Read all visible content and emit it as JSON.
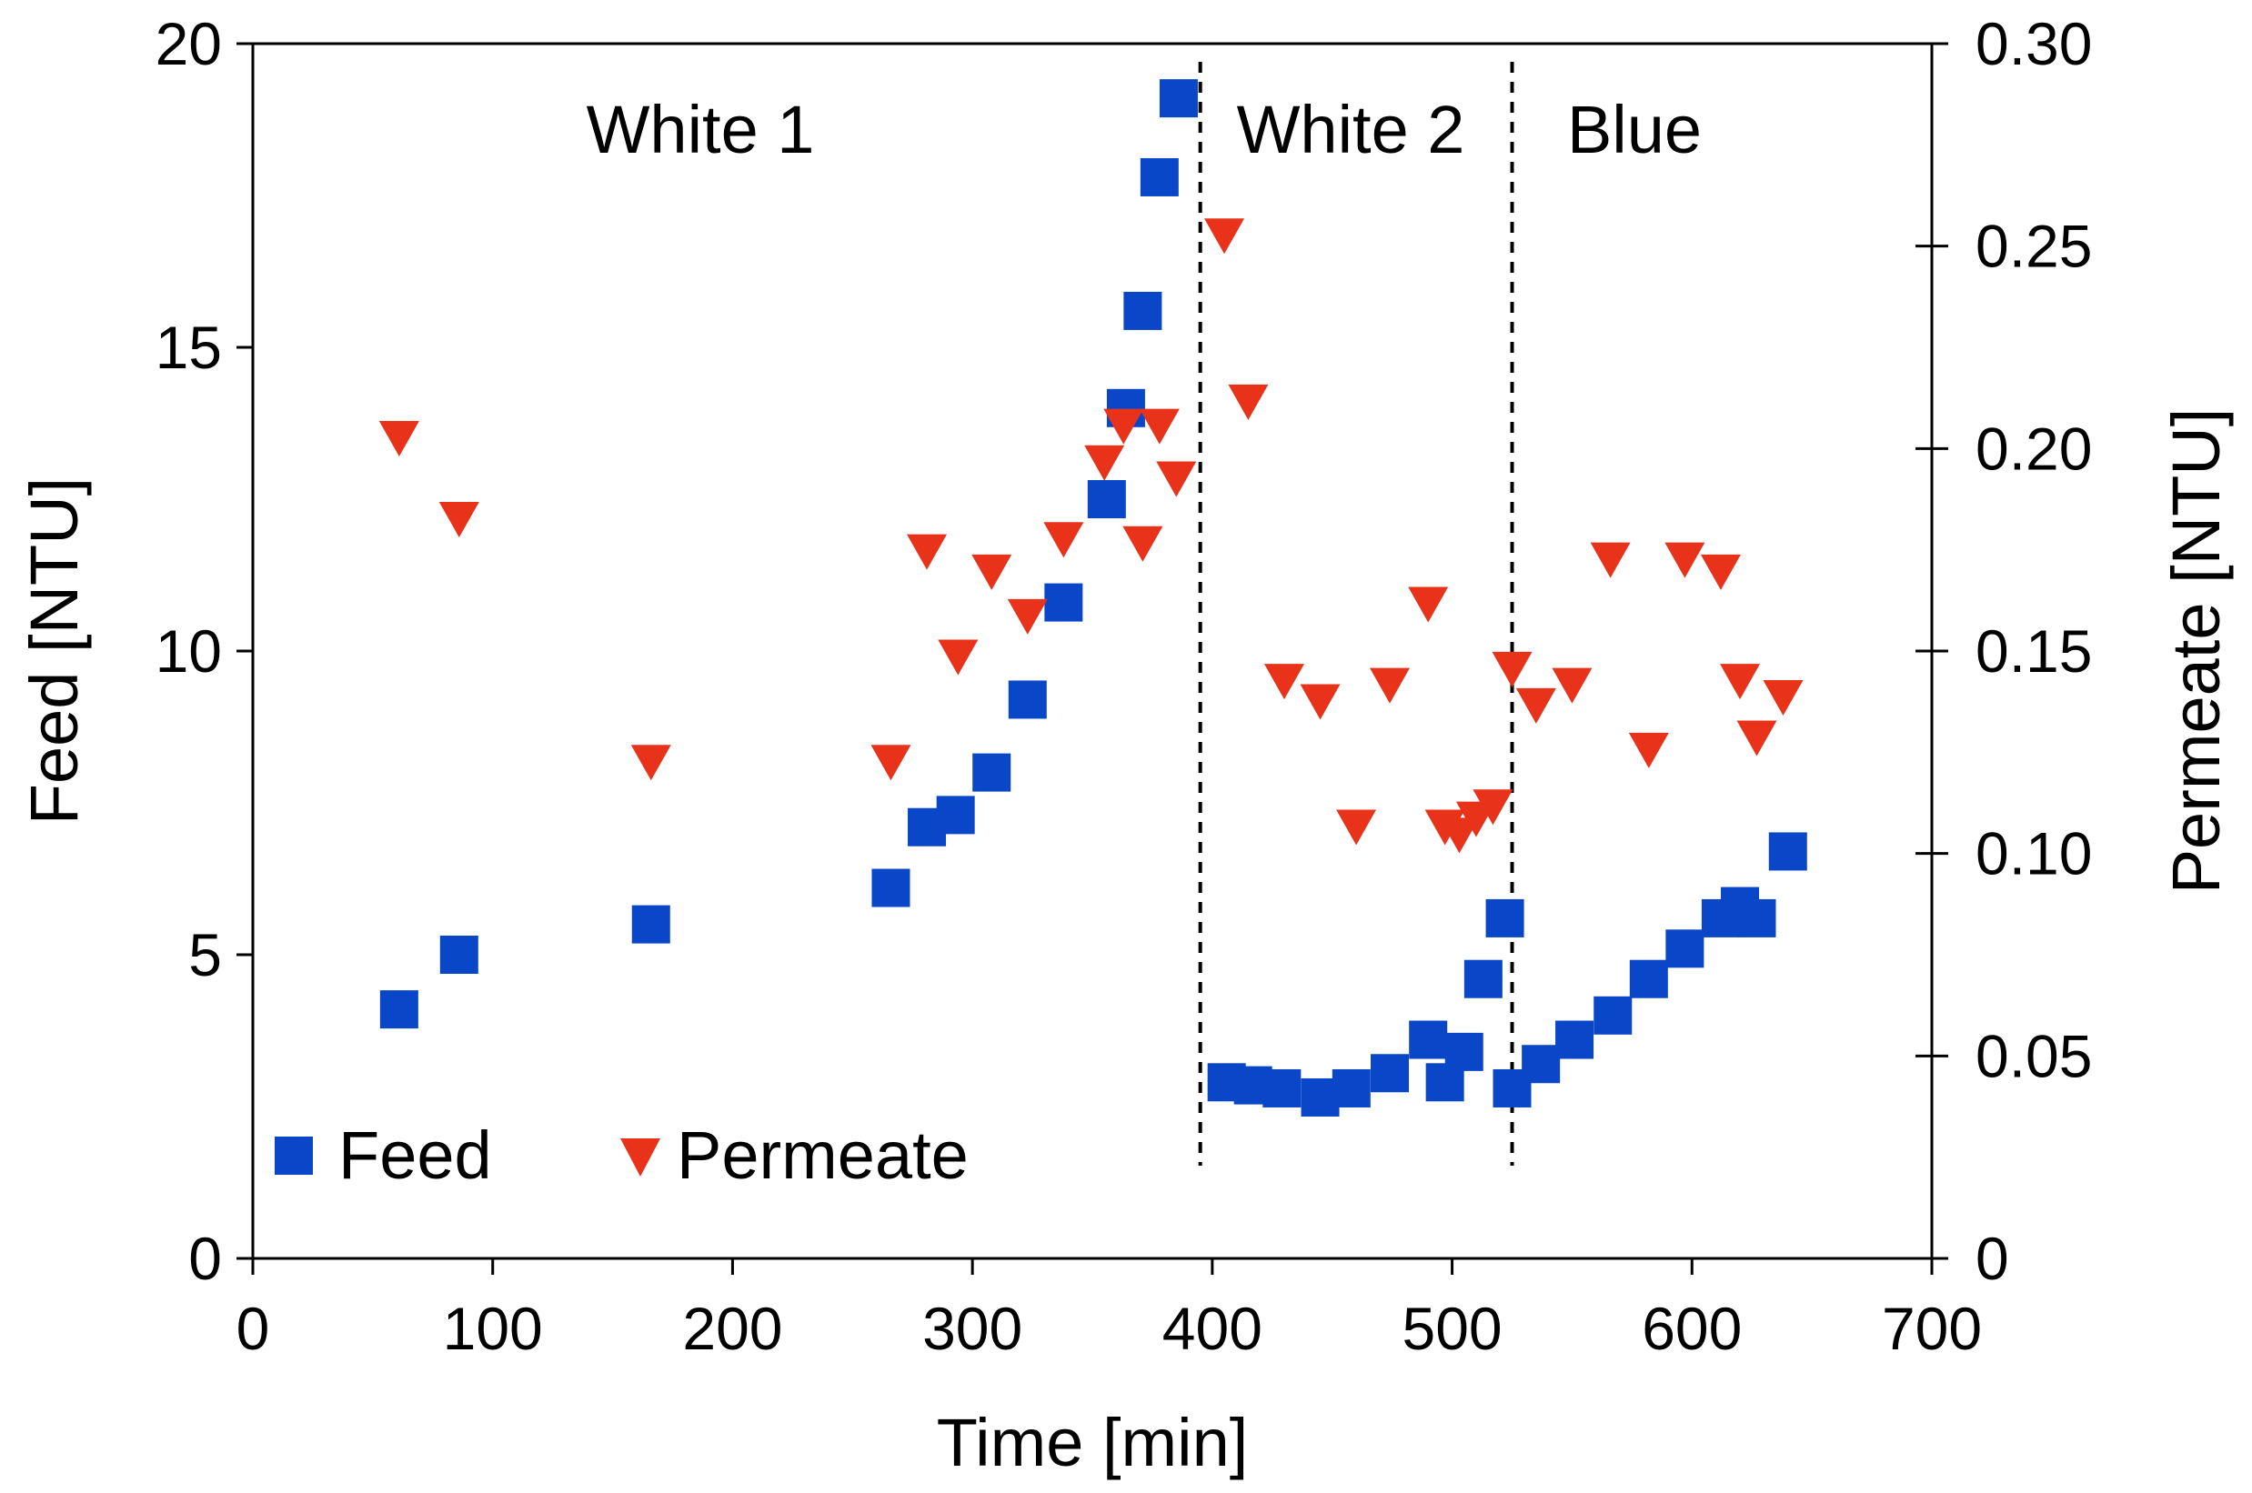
{
  "chart_data": {
    "type": "scatter",
    "xlabel": "Time [min]",
    "ylabel": "Feed [NTU]",
    "y2label": "Permeate  [NTU]",
    "xlim": [
      0,
      700
    ],
    "ylim": [
      0,
      20
    ],
    "y2lim": [
      0,
      0.3
    ],
    "xticks": [
      "0",
      "100",
      "200",
      "300",
      "400",
      "500",
      "600",
      "700"
    ],
    "yticks": [
      "0",
      "5",
      "10",
      "15",
      "20"
    ],
    "y2ticks": [
      "0",
      "0.05",
      "0.10",
      "0.15",
      "0.20",
      "0.25",
      "0.30"
    ],
    "grid": false,
    "legend_position": "bottom-left",
    "region_labels": [
      "White 1",
      "White 2",
      "Blue"
    ],
    "boundaries": [
      395,
      525
    ],
    "series": [
      {
        "name": "Feed",
        "axis": "left",
        "marker": "square",
        "color": "#0a47c8",
        "x": [
          61,
          86,
          166,
          266,
          281,
          293,
          308,
          323,
          338,
          356,
          364,
          371,
          378,
          386,
          406,
          417,
          429,
          445,
          458,
          474,
          490,
          497,
          505,
          513,
          522,
          525,
          537,
          551,
          567,
          582,
          597,
          612,
          620,
          627,
          640
        ],
        "y": [
          4.1,
          5.0,
          5.5,
          6.1,
          7.1,
          7.3,
          8.0,
          9.2,
          10.8,
          12.5,
          14.0,
          15.6,
          17.8,
          19.1,
          2.9,
          2.85,
          2.8,
          2.65,
          2.8,
          3.05,
          3.6,
          2.9,
          3.4,
          4.6,
          5.6,
          2.8,
          3.2,
          3.6,
          4.0,
          4.6,
          5.1,
          5.6,
          5.8,
          5.6,
          6.7
        ]
      },
      {
        "name": "Permeate",
        "axis": "right",
        "marker": "triangle-down",
        "color": "#e8321a",
        "x": [
          61,
          86,
          166,
          266,
          281,
          294,
          308,
          323,
          338,
          355,
          363,
          371,
          378,
          385,
          405,
          415,
          430,
          445,
          460,
          474,
          490,
          497,
          503,
          510,
          517,
          525,
          535,
          550,
          566,
          582,
          597,
          612,
          620,
          627,
          638
        ],
        "y": [
          0.203,
          0.183,
          0.123,
          0.123,
          0.175,
          0.149,
          0.17,
          0.159,
          0.178,
          0.197,
          0.206,
          0.177,
          0.206,
          0.193,
          0.253,
          0.212,
          0.143,
          0.138,
          0.107,
          0.142,
          0.162,
          0.107,
          0.105,
          0.109,
          0.112,
          0.146,
          0.137,
          0.142,
          0.173,
          0.126,
          0.173,
          0.17,
          0.143,
          0.129,
          0.139
        ]
      }
    ]
  }
}
